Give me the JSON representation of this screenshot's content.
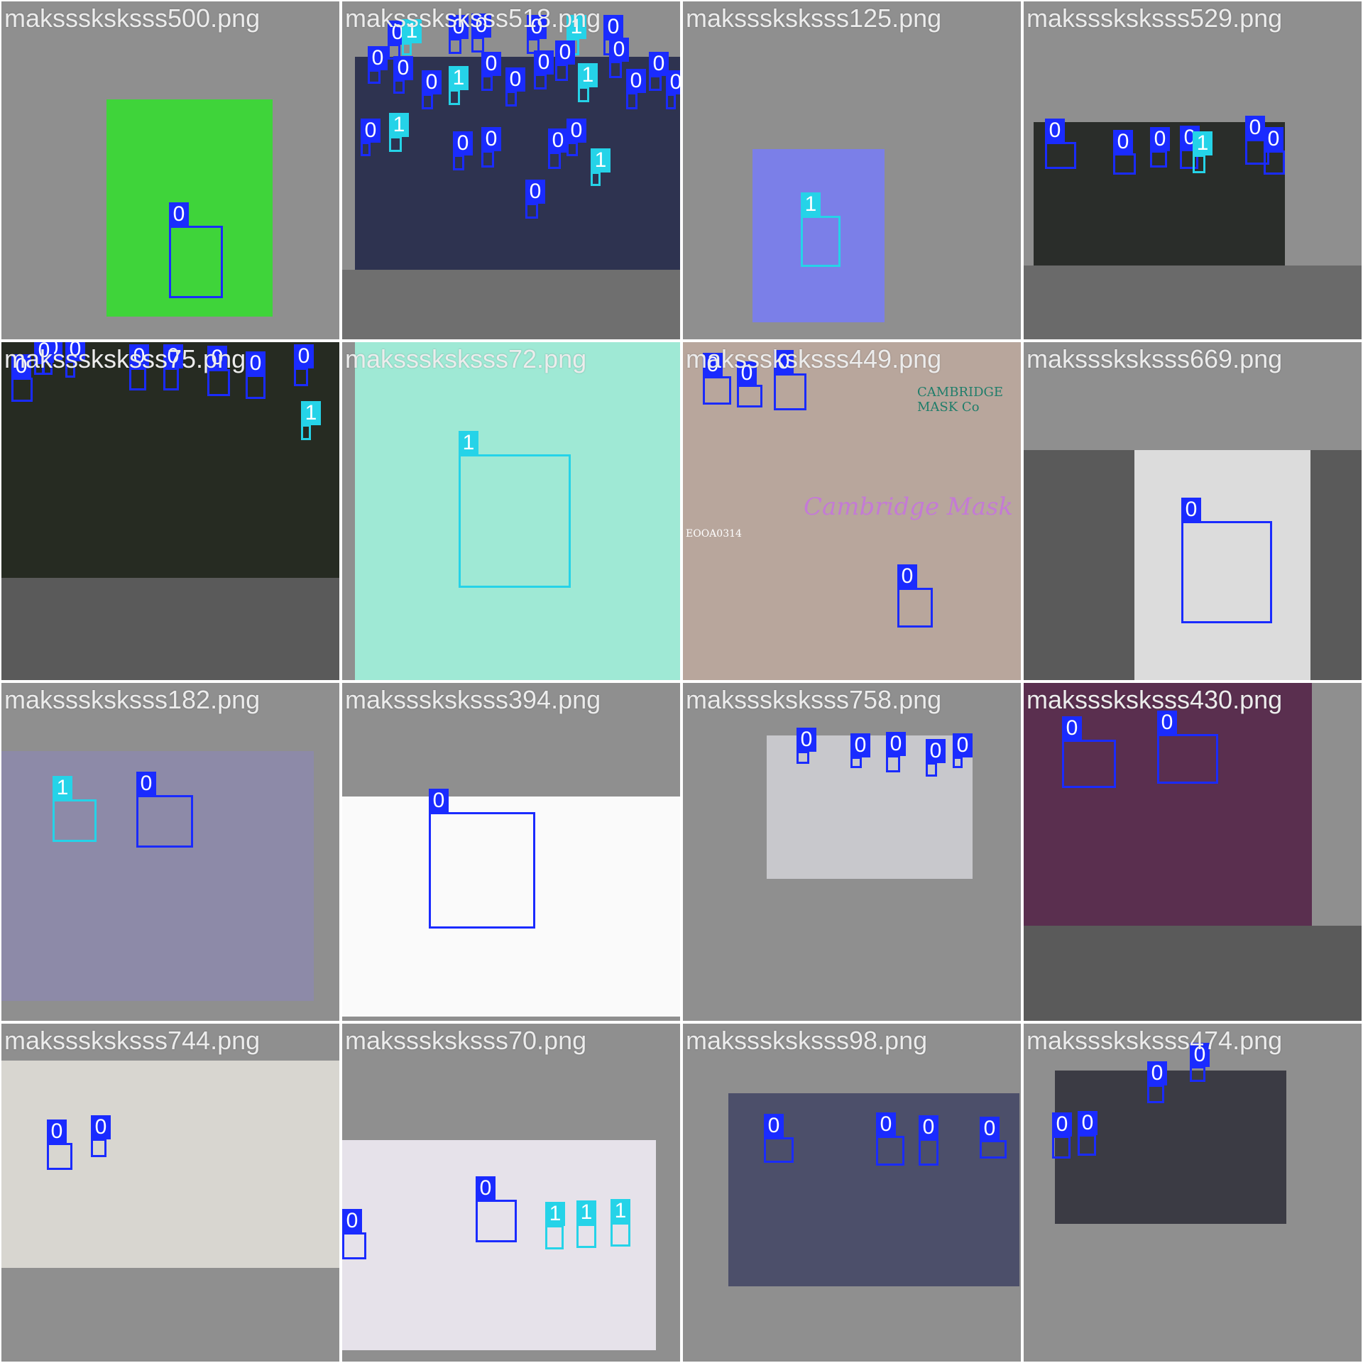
{
  "grid_title": "",
  "colors": {
    "tile_background": "#8f8f8f",
    "tile_border": "#ffffff",
    "class_0_color": "#1a2bff",
    "class_1_color": "#25d3e8",
    "title_text": "#ececec"
  },
  "class_labels": {
    "0": "0",
    "1": "1"
  },
  "tiles": [
    {
      "filename": "maksssksksss500.png",
      "photo_bg": "#3fd43a",
      "lower_bg": "",
      "boxes": [
        {
          "cls": "0",
          "label": "0"
        }
      ]
    },
    {
      "filename": "maksssksksss518.png",
      "photo_bg": "#2e3350",
      "lower_bg": "#6f6f6f",
      "boxes": [
        {
          "cls": "0",
          "label": "0"
        },
        {
          "cls": "1",
          "label": "1"
        },
        {
          "cls": "0",
          "label": "0"
        },
        {
          "cls": "0",
          "label": "0"
        },
        {
          "cls": "0",
          "label": "0"
        },
        {
          "cls": "1",
          "label": "1"
        },
        {
          "cls": "0",
          "label": "0"
        },
        {
          "cls": "0",
          "label": "0"
        },
        {
          "cls": "0",
          "label": "0"
        },
        {
          "cls": "0",
          "label": "0"
        },
        {
          "cls": "1",
          "label": "1"
        },
        {
          "cls": "0",
          "label": "0"
        },
        {
          "cls": "0",
          "label": "0"
        },
        {
          "cls": "0",
          "label": "0"
        },
        {
          "cls": "0",
          "label": "0"
        },
        {
          "cls": "1",
          "label": "1"
        },
        {
          "cls": "0",
          "label": "0"
        },
        {
          "cls": "0",
          "label": "0"
        },
        {
          "cls": "0",
          "label": "0"
        },
        {
          "cls": "0",
          "label": "0"
        },
        {
          "cls": "0",
          "label": "0"
        },
        {
          "cls": "1",
          "label": "1"
        },
        {
          "cls": "0",
          "label": "0"
        },
        {
          "cls": "0",
          "label": "0"
        },
        {
          "cls": "0",
          "label": "0"
        },
        {
          "cls": "0",
          "label": "0"
        },
        {
          "cls": "1",
          "label": "1"
        },
        {
          "cls": "0",
          "label": "0"
        }
      ]
    },
    {
      "filename": "maksssksksss125.png",
      "photo_bg": "#7b7fe8",
      "lower_bg": "",
      "boxes": [
        {
          "cls": "1",
          "label": "1"
        }
      ]
    },
    {
      "filename": "maksssksksss529.png",
      "photo_bg": "#2a2d2a",
      "lower_bg": "#6a6a6a",
      "boxes": [
        {
          "cls": "0",
          "label": "0"
        },
        {
          "cls": "0",
          "label": "0"
        },
        {
          "cls": "0",
          "label": "0"
        },
        {
          "cls": "0",
          "label": "0"
        },
        {
          "cls": "1",
          "label": "1"
        },
        {
          "cls": "0",
          "label": "0"
        },
        {
          "cls": "0",
          "label": "0"
        }
      ]
    },
    {
      "filename": "maksssksksss75.png",
      "photo_bg": "#262b22",
      "lower_bg": "#5a5a5a",
      "boxes": [
        {
          "cls": "0",
          "label": "0"
        },
        {
          "cls": "0",
          "label": "0"
        },
        {
          "cls": "0",
          "label": "0"
        },
        {
          "cls": "0",
          "label": "0"
        },
        {
          "cls": "0",
          "label": "0"
        },
        {
          "cls": "0",
          "label": "0"
        },
        {
          "cls": "0",
          "label": "0"
        },
        {
          "cls": "0",
          "label": "0"
        },
        {
          "cls": "0",
          "label": "0"
        },
        {
          "cls": "1",
          "label": "1"
        }
      ]
    },
    {
      "filename": "maksssksksss72.png",
      "photo_bg": "#9fe9d5",
      "lower_bg": "",
      "boxes": [
        {
          "cls": "1",
          "label": "1"
        }
      ]
    },
    {
      "filename": "maksssksksss449.png",
      "photo_bg": "#b8a69c",
      "lower_bg": "",
      "boxes": [
        {
          "cls": "0",
          "label": "0"
        },
        {
          "cls": "0",
          "label": "0"
        },
        {
          "cls": "0",
          "label": "0"
        },
        {
          "cls": "0",
          "label": "0"
        }
      ],
      "image_texts": [
        "CAMBRIDGE MASK Co",
        "Cambridge Mask",
        "EOOA0314"
      ]
    },
    {
      "filename": "maksssksksss669.png",
      "photo_bg": "#dcdcdc",
      "lower_bg": "#5a5a5a",
      "boxes": [
        {
          "cls": "0",
          "label": "0"
        }
      ]
    },
    {
      "filename": "maksssksksss182.png",
      "photo_bg": "#8d8aa8",
      "lower_bg": "",
      "boxes": [
        {
          "cls": "1",
          "label": "1"
        },
        {
          "cls": "0",
          "label": "0"
        }
      ]
    },
    {
      "filename": "maksssksksss394.png",
      "photo_bg": "#fafafa",
      "lower_bg": "",
      "boxes": [
        {
          "cls": "0",
          "label": "0"
        }
      ]
    },
    {
      "filename": "maksssksksss758.png",
      "photo_bg": "#c8c8cc",
      "lower_bg": "",
      "boxes": [
        {
          "cls": "0",
          "label": "0"
        },
        {
          "cls": "0",
          "label": "0"
        },
        {
          "cls": "0",
          "label": "0"
        },
        {
          "cls": "0",
          "label": "0"
        },
        {
          "cls": "0",
          "label": "0"
        }
      ]
    },
    {
      "filename": "maksssksksss430.png",
      "photo_bg": "#5a2f4f",
      "lower_bg": "#5a5a5a",
      "boxes": [
        {
          "cls": "0",
          "label": "0"
        },
        {
          "cls": "0",
          "label": "0"
        }
      ]
    },
    {
      "filename": "maksssksksss744.png",
      "photo_bg": "#d8d6d0",
      "lower_bg": "",
      "boxes": [
        {
          "cls": "0",
          "label": "0"
        },
        {
          "cls": "0",
          "label": "0"
        }
      ]
    },
    {
      "filename": "maksssksksss70.png",
      "photo_bg": "#e6e2ea",
      "lower_bg": "",
      "boxes": [
        {
          "cls": "0",
          "label": "0"
        },
        {
          "cls": "0",
          "label": "0"
        },
        {
          "cls": "1",
          "label": "1"
        },
        {
          "cls": "1",
          "label": "1"
        },
        {
          "cls": "1",
          "label": "1"
        }
      ]
    },
    {
      "filename": "maksssksksss98.png",
      "photo_bg": "#4c4f6a",
      "lower_bg": "",
      "boxes": [
        {
          "cls": "0",
          "label": "0"
        },
        {
          "cls": "0",
          "label": "0"
        },
        {
          "cls": "0",
          "label": "0"
        },
        {
          "cls": "0",
          "label": "0"
        }
      ]
    },
    {
      "filename": "maksssksksss474.png",
      "photo_bg": "#3b3b44",
      "lower_bg": "",
      "boxes": [
        {
          "cls": "0",
          "label": "0"
        },
        {
          "cls": "0",
          "label": "0"
        },
        {
          "cls": "0",
          "label": "0"
        },
        {
          "cls": "0",
          "label": "0"
        }
      ]
    }
  ]
}
